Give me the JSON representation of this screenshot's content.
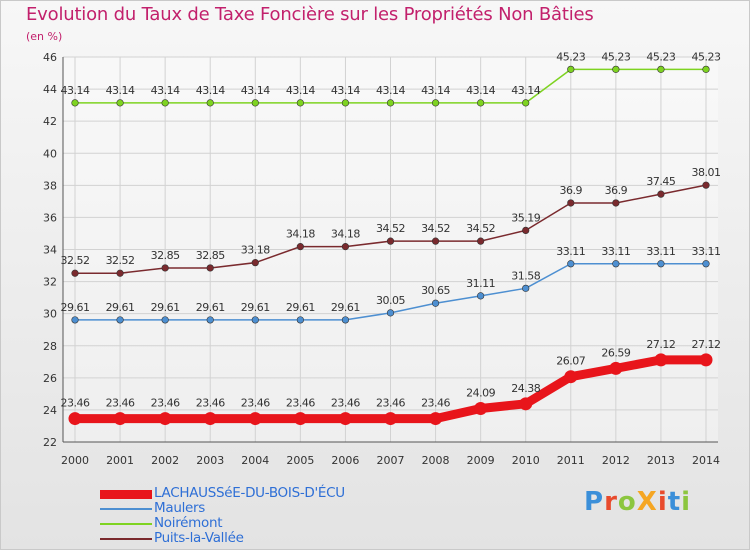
{
  "title": "Evolution du Taux de Taxe Foncière sur les Propriétés Non Bâties",
  "unit_label": "(en %)",
  "logo_text": "ProXiti",
  "logo_colors": [
    "#3b8fd9",
    "#e84a2c",
    "#8cc63f",
    "#f5a623",
    "#e84a2c",
    "#3b8fd9",
    "#8cc63f"
  ],
  "chart_data": {
    "type": "line",
    "title": "Evolution du Taux de Taxe Foncière sur les Propriétés Non Bâties",
    "ylabel": "(en %)",
    "xlabel": "",
    "ylim": [
      22,
      46
    ],
    "yticks": [
      22,
      24,
      26,
      28,
      30,
      32,
      34,
      36,
      38,
      40,
      42,
      44,
      46
    ],
    "grid": true,
    "x": [
      "2000",
      "2001",
      "2002",
      "2003",
      "2004",
      "2005",
      "2006",
      "2007",
      "2008",
      "2009",
      "2010",
      "2011",
      "2012",
      "2013",
      "2014"
    ],
    "series": [
      {
        "name": "LACHAUSSéE-DU-BOIS-D'ÉCU",
        "color": "#e8151b",
        "emphasis": true,
        "values": [
          23.46,
          23.46,
          23.46,
          23.46,
          23.46,
          23.46,
          23.46,
          23.46,
          23.46,
          24.09,
          24.38,
          26.07,
          26.59,
          27.12,
          27.12
        ],
        "labels": [
          "23.46",
          "23.46",
          "23.46",
          "23.46",
          "23.46",
          "23.46",
          "23.46",
          "23.46",
          "23.46",
          "24.09",
          "24.38",
          "26.07",
          "26.59",
          "27.12",
          "27.12"
        ]
      },
      {
        "name": "Maulers",
        "color": "#4d8fd1",
        "emphasis": false,
        "values": [
          29.61,
          29.61,
          29.61,
          29.61,
          29.61,
          29.61,
          29.61,
          30.05,
          30.65,
          31.11,
          31.58,
          33.11,
          33.11,
          33.11,
          33.11
        ],
        "labels": [
          "29.61",
          "29.61",
          "29.61",
          "29.61",
          "29.61",
          "29.61",
          "29.61",
          "30.05",
          "30.65",
          "31.11",
          "31.58",
          "33.11",
          "33.11",
          "33.11",
          "33.11"
        ]
      },
      {
        "name": "Noirémont",
        "color": "#7ed321",
        "emphasis": false,
        "values": [
          43.14,
          43.14,
          43.14,
          43.14,
          43.14,
          43.14,
          43.14,
          43.14,
          43.14,
          43.14,
          43.14,
          45.23,
          45.23,
          45.23,
          45.23
        ],
        "labels": [
          "43.14",
          "43.14",
          "43.14",
          "43.14",
          "43.14",
          "43.14",
          "43.14",
          "43.14",
          "43.14",
          "43.14",
          "43.14",
          "45.23",
          "45.23",
          "45.23",
          "45.23"
        ]
      },
      {
        "name": "Puits-la-Vallée",
        "color": "#7a2a2e",
        "emphasis": false,
        "values": [
          32.52,
          32.52,
          32.85,
          32.85,
          33.18,
          34.18,
          34.18,
          34.52,
          34.52,
          34.52,
          35.19,
          36.9,
          36.9,
          37.45,
          38.01
        ],
        "labels": [
          "32.52",
          "32.52",
          "32.85",
          "32.85",
          "33.18",
          "34.18",
          "34.18",
          "34.52",
          "34.52",
          "34.52",
          "35.19",
          "36.9",
          "36.9",
          "37.45",
          "38.01"
        ]
      }
    ]
  }
}
